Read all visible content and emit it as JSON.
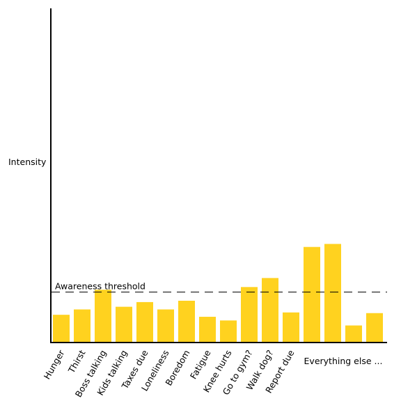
{
  "chart_data": {
    "type": "bar",
    "ylabel": "Intensity",
    "xlabel": "",
    "title": "",
    "bar_color": "#FFD21F",
    "threshold": {
      "label": "Awareness threshold",
      "value": 0.151
    },
    "categories": [
      "Hunger",
      "Thirst",
      "Boss talking",
      "Kids talking",
      "Taxes due",
      "Loneliness",
      "Boredom",
      "Fatigue",
      "Knee hurts",
      "Go to gym?",
      "Walk dog?",
      "Report due",
      "",
      "",
      "",
      ""
    ],
    "values": [
      0.083,
      0.099,
      0.158,
      0.107,
      0.121,
      0.099,
      0.125,
      0.077,
      0.066,
      0.166,
      0.193,
      0.09,
      0.286,
      0.295,
      0.051,
      0.088
    ],
    "group_label": {
      "text": "Everything else ...",
      "covers": [
        12,
        15
      ]
    },
    "ylim": [
      0,
      1
    ],
    "grid": false,
    "y_ticks": false
  }
}
